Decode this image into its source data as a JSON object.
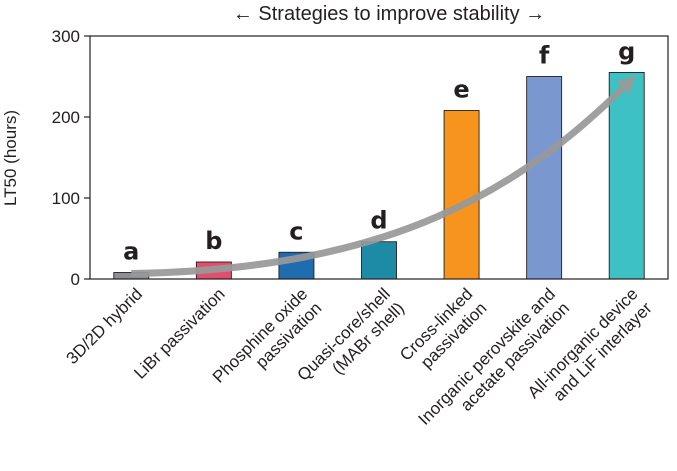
{
  "chart_data": {
    "type": "bar",
    "title": "← Strategies to improve stability →",
    "ylabel": "LT50 (hours)",
    "xlabel": "",
    "ylim": [
      0,
      300
    ],
    "yticks": [
      0,
      100,
      200,
      300
    ],
    "grid": false,
    "categories": [
      "3D/2D hybrid",
      "LiBr passivation",
      "Phosphine oxide passivation",
      "Quasi-core/shell (MABr shell)",
      "Cross-linked passivation",
      "Inorganic perovskite and acetate passivation",
      "All-inorganic device and LiF interlayer"
    ],
    "category_lines": [
      [
        "3D/2D hybrid"
      ],
      [
        "LiBr passivation"
      ],
      [
        "Phosphine oxide",
        "passivation"
      ],
      [
        "Quasi-core/shell",
        "(MABr shell)"
      ],
      [
        "Cross-linked",
        "passivation"
      ],
      [
        "Inorganic perovskite and",
        "acetate passivation"
      ],
      [
        "All-inorganic device",
        "and LiF interlayer"
      ]
    ],
    "bar_labels": [
      "a",
      "b",
      "c",
      "d",
      "e",
      "f",
      "g"
    ],
    "values": [
      8,
      21,
      33,
      46,
      208,
      250,
      255
    ],
    "colors": [
      "#8c8f94",
      "#e04f6c",
      "#1f6cae",
      "#1d8aa6",
      "#f7941d",
      "#7b97cf",
      "#3ec1c3"
    ],
    "trend_arrow": {
      "color": "#999999"
    }
  }
}
